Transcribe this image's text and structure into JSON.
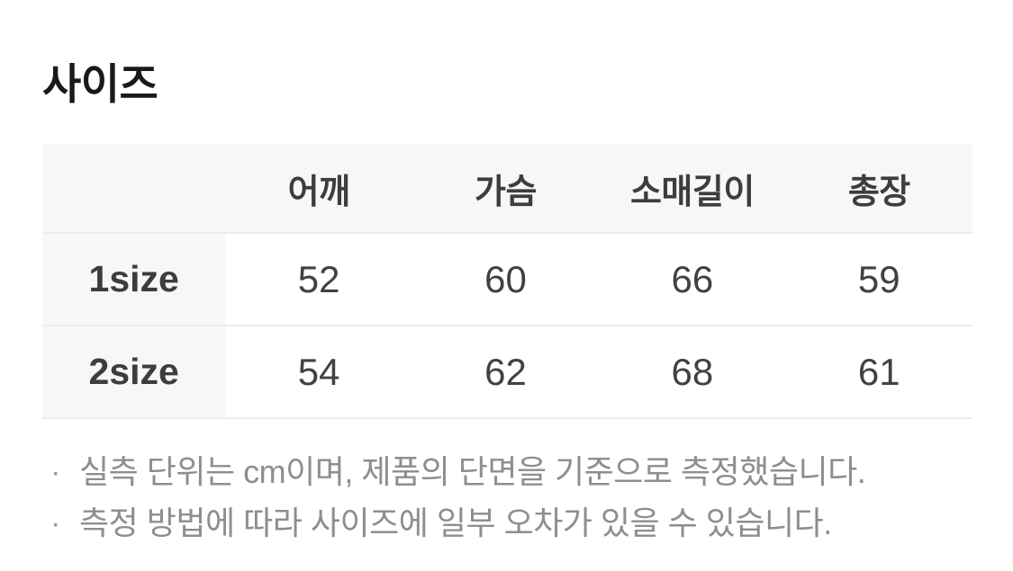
{
  "page": {
    "title": "사이즈"
  },
  "size_table": {
    "corner": "",
    "columns": [
      "어깨",
      "가슴",
      "소매길이",
      "총장"
    ],
    "rows": [
      {
        "label": "1size",
        "values": [
          "52",
          "60",
          "66",
          "59"
        ]
      },
      {
        "label": "2size",
        "values": [
          "54",
          "62",
          "68",
          "61"
        ]
      }
    ]
  },
  "notes": {
    "bullet": "·",
    "items": [
      "실측 단위는 cm이며, 제품의 단면을 기준으로 측정했습니다.",
      "측정 방법에 따라 사이즈에 일부 오차가 있을 수 있습니다."
    ]
  },
  "colors": {
    "header_bg": "#f7f7f7",
    "row_border": "#ececec",
    "title_text": "#1a1a1a",
    "header_text": "#3d3d3d",
    "cell_text": "#414141",
    "note_text": "#8e8e8e"
  }
}
